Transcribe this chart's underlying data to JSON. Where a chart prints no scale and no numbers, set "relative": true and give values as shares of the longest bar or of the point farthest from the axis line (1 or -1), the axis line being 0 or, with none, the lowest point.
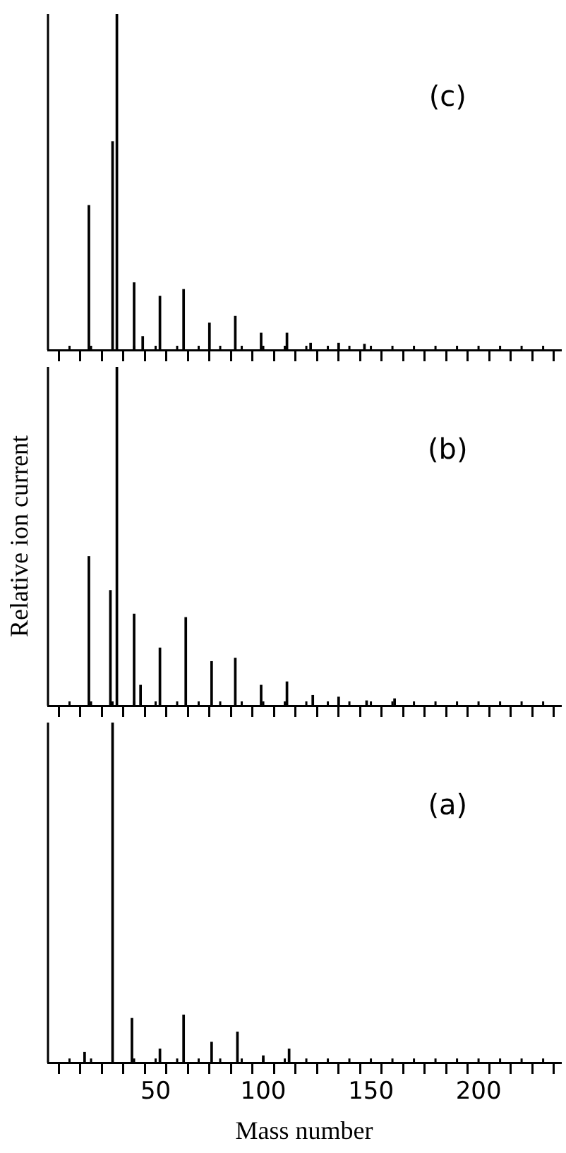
{
  "chart_data": [
    {
      "type": "bar",
      "relative": true,
      "color": "#000000",
      "annotations": [
        "(c)"
      ],
      "tick_labels": false,
      "xlim": [
        0,
        238
      ],
      "xticks": [
        {
          "value": 10,
          "label": null
        },
        {
          "value": 20,
          "label": null
        },
        {
          "value": 30,
          "label": null
        },
        {
          "value": 40,
          "label": null
        },
        50,
        {
          "value": 60,
          "label": null
        },
        {
          "value": 70,
          "label": null
        },
        {
          "value": 80,
          "label": null
        },
        {
          "value": 90,
          "label": null
        },
        100,
        {
          "value": 110,
          "label": null
        },
        {
          "value": 120,
          "label": null
        },
        {
          "value": 130,
          "label": null
        },
        {
          "value": 140,
          "label": null
        },
        150,
        {
          "value": 160,
          "label": null
        },
        {
          "value": 170,
          "label": null
        },
        {
          "value": 180,
          "label": null
        },
        {
          "value": 190,
          "label": null
        },
        200,
        {
          "value": 210,
          "label": null
        },
        {
          "value": 220,
          "label": null
        },
        {
          "value": 230,
          "label": null
        }
      ],
      "x": [
        19,
        30,
        32,
        40,
        44,
        52,
        63,
        75,
        87,
        99,
        111,
        122,
        135,
        147
      ],
      "values": [
        0.43,
        0.62,
        1,
        0.2,
        0.04,
        0.16,
        0.18,
        0.08,
        0.1,
        0.05,
        0.05,
        0.02,
        0.02,
        0.017
      ]
    },
    {
      "type": "bar",
      "relative": true,
      "color": "#000000",
      "annotations": [
        "(b)"
      ],
      "ylabel": "Relative ion current",
      "tick_labels": false,
      "xlim": [
        0,
        238
      ],
      "xticks": [
        {
          "value": 10,
          "label": null
        },
        {
          "value": 20,
          "label": null
        },
        {
          "value": 30,
          "label": null
        },
        {
          "value": 40,
          "label": null
        },
        50,
        {
          "value": 60,
          "label": null
        },
        {
          "value": 70,
          "label": null
        },
        {
          "value": 80,
          "label": null
        },
        {
          "value": 90,
          "label": null
        },
        100,
        {
          "value": 110,
          "label": null
        },
        {
          "value": 120,
          "label": null
        },
        {
          "value": 130,
          "label": null
        },
        {
          "value": 140,
          "label": null
        },
        150,
        {
          "value": 160,
          "label": null
        },
        {
          "value": 170,
          "label": null
        },
        {
          "value": 180,
          "label": null
        },
        {
          "value": 190,
          "label": null
        },
        200,
        {
          "value": 210,
          "label": null
        },
        {
          "value": 220,
          "label": null
        },
        {
          "value": 230,
          "label": null
        }
      ],
      "x": [
        19,
        29,
        32,
        40,
        43,
        52,
        64,
        76,
        87,
        99,
        111,
        123,
        135,
        148,
        161
      ],
      "values": [
        0.44,
        0.34,
        1,
        0.27,
        0.06,
        0.17,
        0.26,
        0.13,
        0.14,
        0.06,
        0.07,
        0.03,
        0.025,
        0.014,
        0.02
      ]
    },
    {
      "type": "bar",
      "relative": true,
      "color": "#000000",
      "annotations": [
        "(a)"
      ],
      "xlabel": "Mass number",
      "tick_labels": "x",
      "xlim": [
        0,
        238
      ],
      "xticks": [
        {
          "value": 10,
          "label": null
        },
        {
          "value": 20,
          "label": null
        },
        {
          "value": 30,
          "label": null
        },
        {
          "value": 40,
          "label": null
        },
        50,
        {
          "value": 60,
          "label": null
        },
        {
          "value": 70,
          "label": null
        },
        {
          "value": 80,
          "label": null
        },
        {
          "value": 90,
          "label": null
        },
        100,
        {
          "value": 110,
          "label": null
        },
        {
          "value": 120,
          "label": null
        },
        {
          "value": 130,
          "label": null
        },
        {
          "value": 140,
          "label": null
        },
        150,
        {
          "value": 160,
          "label": null
        },
        {
          "value": 170,
          "label": null
        },
        {
          "value": 180,
          "label": null
        },
        {
          "value": 190,
          "label": null
        },
        200,
        {
          "value": 210,
          "label": null
        },
        {
          "value": 220,
          "label": null
        },
        {
          "value": 230,
          "label": null
        }
      ],
      "x": [
        17,
        30,
        39,
        52,
        63,
        76,
        88,
        100,
        112
      ],
      "values": [
        0.03,
        1,
        0.13,
        0.04,
        0.14,
        0.06,
        0.09,
        0.02,
        0.04
      ]
    }
  ]
}
